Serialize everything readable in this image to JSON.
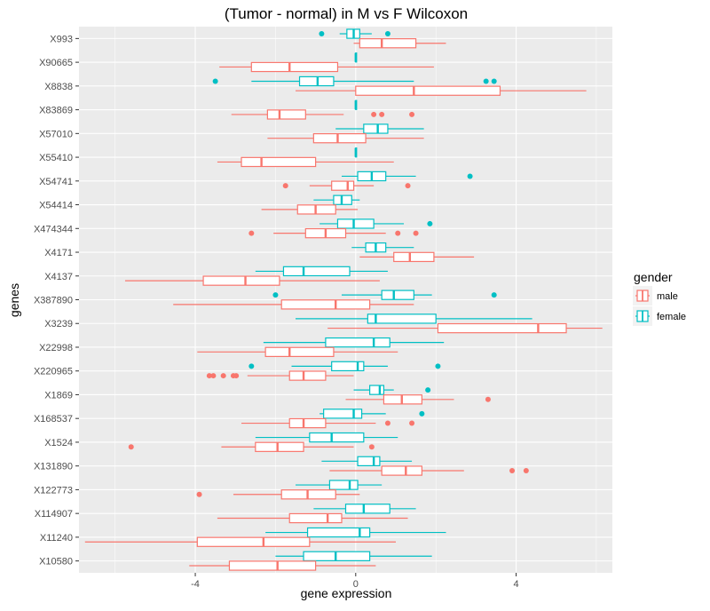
{
  "chart_data": {
    "type": "boxplot",
    "orientation": "horizontal",
    "title": "(Tumor - normal) in M vs F Wilcoxon",
    "xlabel": "gene expression",
    "ylabel": "genes",
    "xlim": [
      -6.9,
      6.4
    ],
    "xticks": [
      -4,
      0,
      4
    ],
    "xtick_labels": [
      "-4",
      "0",
      "4"
    ],
    "grid": true,
    "legend": {
      "title": "gender",
      "position": "right",
      "entries": [
        {
          "label": "male",
          "color": "#F8766D"
        },
        {
          "label": "female",
          "color": "#00BFC4"
        }
      ]
    },
    "colors": {
      "male": "#F8766D",
      "female": "#00BFC4",
      "panel": "#EBEBEB"
    },
    "categories": [
      "X993",
      "X90665",
      "X8838",
      "X83869",
      "X57010",
      "X55410",
      "X54741",
      "X54414",
      "X474344",
      "X4171",
      "X4137",
      "X387890",
      "X3239",
      "X22998",
      "X220965",
      "X1869",
      "X168537",
      "X1524",
      "X131890",
      "X122773",
      "X114907",
      "X11240",
      "X10580"
    ],
    "series": [
      {
        "name": "female",
        "boxes": [
          {
            "min": -0.4,
            "q1": -0.22,
            "median": -0.05,
            "q3": 0.1,
            "max": 0.4,
            "outliers": [
              -0.85,
              0.8
            ]
          },
          {
            "min": 0.0,
            "q1": 0.0,
            "median": 0.0,
            "q3": 0.0,
            "max": 0.0,
            "outliers": []
          },
          {
            "min": -2.6,
            "q1": -1.4,
            "median": -0.95,
            "q3": -0.55,
            "max": 1.45,
            "outliers": [
              -3.5,
              3.25,
              3.45
            ]
          },
          {
            "min": 0.0,
            "q1": 0.0,
            "median": 0.0,
            "q3": 0.0,
            "max": 0.0,
            "outliers": []
          },
          {
            "min": -0.5,
            "q1": 0.2,
            "median": 0.55,
            "q3": 0.8,
            "max": 1.7,
            "outliers": []
          },
          {
            "min": 0.0,
            "q1": 0.0,
            "median": 0.0,
            "q3": 0.0,
            "max": 0.0,
            "outliers": []
          },
          {
            "min": -0.35,
            "q1": 0.05,
            "median": 0.4,
            "q3": 0.75,
            "max": 1.5,
            "outliers": [
              2.85
            ]
          },
          {
            "min": -1.05,
            "q1": -0.55,
            "median": -0.35,
            "q3": -0.1,
            "max": 0.1,
            "outliers": []
          },
          {
            "min": -0.9,
            "q1": -0.45,
            "median": -0.05,
            "q3": 0.45,
            "max": 1.2,
            "outliers": [
              1.85
            ]
          },
          {
            "min": -0.1,
            "q1": 0.25,
            "median": 0.5,
            "q3": 0.75,
            "max": 1.45,
            "outliers": []
          },
          {
            "min": -2.5,
            "q1": -1.8,
            "median": -1.3,
            "q3": -0.15,
            "max": 0.8,
            "outliers": []
          },
          {
            "min": -0.35,
            "q1": 0.65,
            "median": 0.95,
            "q3": 1.45,
            "max": 1.9,
            "outliers": [
              -2.0,
              3.45
            ]
          },
          {
            "min": -1.5,
            "q1": 0.3,
            "median": 0.5,
            "q3": 2.0,
            "max": 4.4,
            "outliers": []
          },
          {
            "min": -2.3,
            "q1": -0.75,
            "median": 0.45,
            "q3": 0.85,
            "max": 2.2,
            "outliers": []
          },
          {
            "min": -1.6,
            "q1": -0.6,
            "median": 0.05,
            "q3": 0.2,
            "max": 0.8,
            "outliers": [
              -2.6,
              2.05
            ]
          },
          {
            "min": -0.05,
            "q1": 0.35,
            "median": 0.6,
            "q3": 0.7,
            "max": 0.95,
            "outliers": [
              1.8
            ]
          },
          {
            "min": -0.9,
            "q1": -0.8,
            "median": -0.05,
            "q3": 0.15,
            "max": 0.75,
            "outliers": [
              1.65
            ]
          },
          {
            "min": -2.5,
            "q1": -1.15,
            "median": -0.6,
            "q3": 0.2,
            "max": 1.05,
            "outliers": []
          },
          {
            "min": -0.85,
            "q1": 0.05,
            "median": 0.45,
            "q3": 0.6,
            "max": 1.4,
            "outliers": []
          },
          {
            "min": -1.5,
            "q1": -0.65,
            "median": -0.15,
            "q3": 0.05,
            "max": 0.65,
            "outliers": []
          },
          {
            "min": -1.05,
            "q1": -0.25,
            "median": 0.2,
            "q3": 0.85,
            "max": 1.5,
            "outliers": []
          },
          {
            "min": -2.25,
            "q1": -1.2,
            "median": 0.1,
            "q3": 0.35,
            "max": 2.25,
            "outliers": []
          },
          {
            "min": -2.0,
            "q1": -1.3,
            "median": -0.5,
            "q3": 0.35,
            "max": 1.9,
            "outliers": []
          }
        ]
      },
      {
        "name": "male",
        "boxes": [
          {
            "min": -0.05,
            "q1": 0.1,
            "median": 0.65,
            "q3": 1.5,
            "max": 2.25,
            "outliers": []
          },
          {
            "min": -3.4,
            "q1": -2.6,
            "median": -1.65,
            "q3": -0.45,
            "max": 1.95,
            "outliers": []
          },
          {
            "min": -1.5,
            "q1": 0.0,
            "median": 1.45,
            "q3": 3.6,
            "max": 5.75,
            "outliers": []
          },
          {
            "min": -3.1,
            "q1": -2.2,
            "median": -1.9,
            "q3": -1.25,
            "max": -0.3,
            "outliers": [
              0.45,
              0.65,
              1.4
            ]
          },
          {
            "min": -2.2,
            "q1": -1.05,
            "median": -0.45,
            "q3": 0.25,
            "max": 1.7,
            "outliers": []
          },
          {
            "min": -3.45,
            "q1": -2.85,
            "median": -2.35,
            "q3": -1.0,
            "max": 0.95,
            "outliers": []
          },
          {
            "min": -1.15,
            "q1": -0.6,
            "median": -0.2,
            "q3": -0.05,
            "max": 0.45,
            "outliers": [
              -1.75,
              1.3
            ]
          },
          {
            "min": -2.35,
            "q1": -1.45,
            "median": -1.0,
            "q3": -0.5,
            "max": 0.05,
            "outliers": []
          },
          {
            "min": -2.05,
            "q1": -1.25,
            "median": -0.75,
            "q3": -0.25,
            "max": 0.75,
            "outliers": [
              -2.6,
              1.05,
              1.5
            ]
          },
          {
            "min": 0.1,
            "q1": 0.95,
            "median": 1.35,
            "q3": 1.95,
            "max": 2.95,
            "outliers": []
          },
          {
            "min": -5.75,
            "q1": -3.8,
            "median": -2.75,
            "q3": -1.9,
            "max": 0.6,
            "outliers": []
          },
          {
            "min": -4.55,
            "q1": -1.85,
            "median": -0.5,
            "q3": 0.35,
            "max": 1.45,
            "outliers": []
          },
          {
            "min": -0.7,
            "q1": 2.05,
            "median": 4.55,
            "q3": 5.25,
            "max": 6.15,
            "outliers": []
          },
          {
            "min": -3.95,
            "q1": -2.25,
            "median": -1.65,
            "q3": -0.55,
            "max": 1.05,
            "outliers": []
          },
          {
            "min": -2.7,
            "q1": -1.65,
            "median": -1.3,
            "q3": -0.75,
            "max": -0.05,
            "outliers": [
              -3.65,
              -3.55,
              -3.3,
              -3.05,
              -2.98
            ]
          },
          {
            "min": -0.25,
            "q1": 0.7,
            "median": 1.15,
            "q3": 1.65,
            "max": 2.45,
            "outliers": [
              3.3
            ]
          },
          {
            "min": -2.85,
            "q1": -1.65,
            "median": -1.3,
            "q3": -0.75,
            "max": 0.5,
            "outliers": [
              0.8,
              1.4
            ]
          },
          {
            "min": -3.35,
            "q1": -2.5,
            "median": -1.95,
            "q3": -1.3,
            "max": -0.05,
            "outliers": [
              -5.6,
              0.4
            ]
          },
          {
            "min": -0.65,
            "q1": 0.65,
            "median": 1.25,
            "q3": 1.65,
            "max": 2.7,
            "outliers": [
              3.9,
              4.25
            ]
          },
          {
            "min": -3.05,
            "q1": -1.85,
            "median": -1.2,
            "q3": -0.5,
            "max": 0.1,
            "outliers": [
              -3.9
            ]
          },
          {
            "min": -3.45,
            "q1": -1.65,
            "median": -0.7,
            "q3": -0.35,
            "max": 1.3,
            "outliers": []
          },
          {
            "min": -6.75,
            "q1": -3.95,
            "median": -2.3,
            "q3": -1.15,
            "max": 1.0,
            "outliers": []
          },
          {
            "min": -4.15,
            "q1": -3.15,
            "median": -1.95,
            "q3": -1.0,
            "max": 0.5,
            "outliers": []
          }
        ]
      }
    ]
  }
}
